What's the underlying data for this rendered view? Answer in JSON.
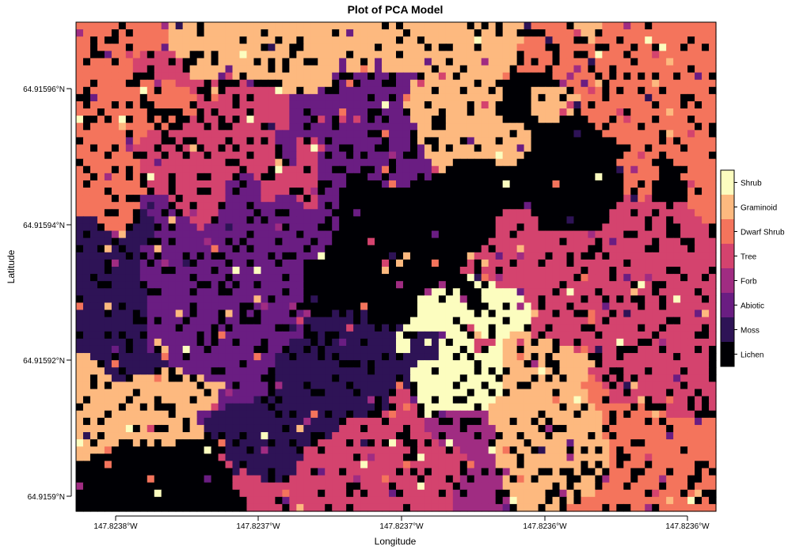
{
  "chart_data": {
    "type": "heatmap",
    "title": "Plot of PCA Model",
    "xlabel": "Longitude",
    "ylabel": "Latitude",
    "x_ticks": [
      "147.8238°W",
      "147.8237°W",
      "147.8237°W",
      "147.8236°W",
      "147.8236°W"
    ],
    "y_ticks": [
      "64.91596°N",
      "64.91594°N",
      "64.91592°N",
      "64.9159°N"
    ],
    "classes": [
      "Shrub",
      "Graminoid",
      "Dwarf Shrub",
      "Tree",
      "Forb",
      "Abiotic",
      "Moss",
      "Lichen"
    ],
    "class_colors": {
      "Shrub": "#fcfdbf",
      "Graminoid": "#fdb97f",
      "Dwarf Shrub": "#f4745c",
      "Tree": "#d4436e",
      "Forb": "#a02c82",
      "Abiotic": "#6a1d82",
      "Moss": "#2e1356",
      "Lichen": "#000004"
    },
    "grid_cols": 90,
    "grid_rows": 68,
    "regions": [
      {
        "class": "Abiotic",
        "cx": 0.22,
        "cy": 0.55
      },
      {
        "class": "Abiotic",
        "cx": 0.4,
        "cy": 0.25
      },
      {
        "class": "Moss",
        "cx": 0.44,
        "cy": 0.72
      },
      {
        "class": "Moss",
        "cx": 0.05,
        "cy": 0.58
      },
      {
        "class": "Forb",
        "cx": 0.62,
        "cy": 0.96
      },
      {
        "class": "Tree",
        "cx": 0.25,
        "cy": 0.2
      },
      {
        "class": "Tree",
        "cx": 0.9,
        "cy": 0.68
      },
      {
        "class": "Tree",
        "cx": 0.5,
        "cy": 0.88
      },
      {
        "class": "Tree",
        "cx": 0.78,
        "cy": 0.55
      },
      {
        "class": "Dwarf Shrub",
        "cx": 0.9,
        "cy": 0.1
      },
      {
        "class": "Dwarf Shrub",
        "cx": 0.06,
        "cy": 0.18
      },
      {
        "class": "Dwarf Shrub",
        "cx": 0.88,
        "cy": 0.88
      },
      {
        "class": "Graminoid",
        "cx": 0.62,
        "cy": 0.12
      },
      {
        "class": "Graminoid",
        "cx": 0.3,
        "cy": 0.06
      },
      {
        "class": "Graminoid",
        "cx": 0.05,
        "cy": 0.82
      },
      {
        "class": "Graminoid",
        "cx": 0.74,
        "cy": 0.86
      },
      {
        "class": "Shrub",
        "cx": 0.6,
        "cy": 0.7
      },
      {
        "class": "Lichen",
        "cx": 0.72,
        "cy": 0.28
      },
      {
        "class": "Lichen",
        "cx": 0.5,
        "cy": 0.5
      },
      {
        "class": "Lichen",
        "cx": 0.06,
        "cy": 0.94
      }
    ]
  }
}
